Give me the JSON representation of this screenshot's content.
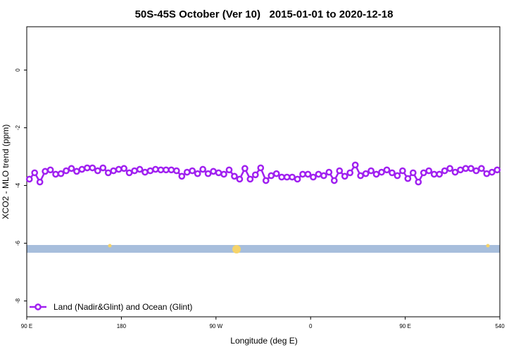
{
  "chart_data": {
    "type": "line",
    "title": "50S-45S October (Ver 10)   2015-01-01 to 2020-12-18",
    "xlabel": "Longitude (deg E)",
    "ylabel": "XCO2 - MLO trend (ppm)",
    "xlim": [
      90,
      540
    ],
    "xticks": [
      {
        "value": 90,
        "label": "90 E"
      },
      180,
      {
        "value": 270,
        "label": "90 W"
      },
      {
        "value": 360,
        "label": "0"
      },
      {
        "value": 450,
        "label": "90 E"
      },
      540
    ],
    "ylim": [
      -8.55,
      1.5
    ],
    "yticks": [
      0,
      -2,
      -4,
      -6,
      -8
    ],
    "legend": "bottom-left",
    "series": [
      {
        "name": "Land (Nadir&Glint) and Ocean (Glint)",
        "color": "#a020f0",
        "x": [
          92.5,
          97.5,
          102.5,
          107.5,
          112.5,
          117.5,
          122.5,
          127.5,
          132.5,
          137.5,
          142.5,
          147.5,
          152.5,
          157.5,
          162.5,
          167.5,
          172.5,
          177.5,
          182.5,
          187.5,
          192.5,
          197.5,
          202.5,
          207.5,
          212.5,
          217.5,
          222.5,
          227.5,
          232.5,
          237.5,
          242.5,
          247.5,
          252.5,
          257.5,
          262.5,
          267.5,
          272.5,
          277.5,
          282.5,
          287.5,
          292.5,
          297.5,
          302.5,
          307.5,
          312.5,
          317.5,
          322.5,
          327.5,
          332.5,
          337.5,
          342.5,
          347.5,
          352.5,
          357.5,
          362.5,
          367.5,
          372.5,
          377.5,
          382.5,
          387.5,
          392.5,
          397.5,
          402.5,
          407.5,
          412.5,
          417.5,
          422.5,
          427.5,
          432.5,
          437.5,
          442.5,
          447.5,
          452.5,
          457.5,
          462.5,
          467.5,
          472.5,
          477.5,
          482.5,
          487.5,
          492.5,
          497.5,
          502.5,
          507.5,
          512.5,
          517.5,
          522.5,
          527.5,
          532.5,
          537.5
        ],
        "values": [
          -3.78,
          -3.56,
          -3.88,
          -3.51,
          -3.46,
          -3.61,
          -3.59,
          -3.49,
          -3.41,
          -3.51,
          -3.44,
          -3.39,
          -3.39,
          -3.49,
          -3.39,
          -3.56,
          -3.49,
          -3.44,
          -3.41,
          -3.56,
          -3.49,
          -3.44,
          -3.54,
          -3.49,
          -3.44,
          -3.46,
          -3.46,
          -3.46,
          -3.49,
          -3.68,
          -3.54,
          -3.49,
          -3.59,
          -3.44,
          -3.59,
          -3.51,
          -3.56,
          -3.61,
          -3.46,
          -3.68,
          -3.78,
          -3.41,
          -3.78,
          -3.63,
          -3.39,
          -3.83,
          -3.66,
          -3.59,
          -3.71,
          -3.71,
          -3.71,
          -3.78,
          -3.61,
          -3.61,
          -3.71,
          -3.61,
          -3.66,
          -3.54,
          -3.83,
          -3.49,
          -3.68,
          -3.56,
          -3.29,
          -3.66,
          -3.59,
          -3.49,
          -3.61,
          -3.54,
          -3.46,
          -3.56,
          -3.66,
          -3.49,
          -3.76,
          -3.56,
          -3.88,
          -3.56,
          -3.49,
          -3.61,
          -3.61,
          -3.49,
          -3.41,
          -3.54,
          -3.46,
          -3.41,
          -3.41,
          -3.49,
          -3.41,
          -3.59,
          -3.54,
          -3.46
        ]
      }
    ]
  }
}
